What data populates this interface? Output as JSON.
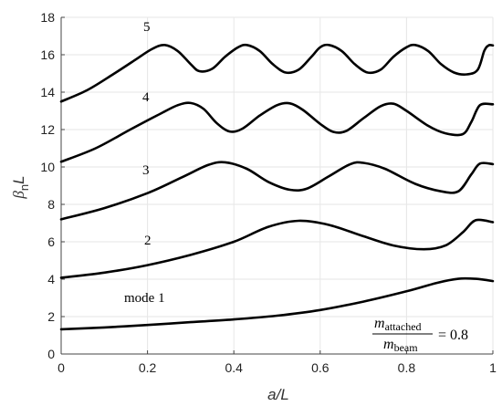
{
  "chart_data": {
    "type": "line",
    "xlabel": "a/L",
    "ylabel": {
      "base": "β",
      "sub": "n",
      "suffix": "L"
    },
    "xlim": [
      0,
      1
    ],
    "ylim": [
      0,
      18
    ],
    "x_ticks": [
      0,
      0.2,
      0.4,
      0.6,
      0.8,
      1
    ],
    "x_tick_labels": [
      "0",
      "0.2",
      "0.4",
      "0.6",
      "0.8",
      "1"
    ],
    "y_ticks": [
      0,
      2,
      4,
      6,
      8,
      10,
      12,
      14,
      16,
      18
    ],
    "y_tick_labels": [
      "0",
      "2",
      "4",
      "6",
      "8",
      "10",
      "12",
      "14",
      "16",
      "18"
    ],
    "grid": true,
    "annotation": {
      "numerator": "m",
      "numerator_sub": "attached",
      "denominator": "m",
      "denominator_sub": "beam",
      "value": "= 0.8"
    },
    "series": [
      {
        "label": "mode 1",
        "points": [
          [
            0,
            1.32
          ],
          [
            0.1,
            1.42
          ],
          [
            0.2,
            1.55
          ],
          [
            0.3,
            1.7
          ],
          [
            0.4,
            1.85
          ],
          [
            0.5,
            2.05
          ],
          [
            0.6,
            2.35
          ],
          [
            0.7,
            2.8
          ],
          [
            0.8,
            3.35
          ],
          [
            0.87,
            3.8
          ],
          [
            0.92,
            4.02
          ],
          [
            0.96,
            4.02
          ],
          [
            1.0,
            3.9
          ]
        ]
      },
      {
        "label": "2",
        "points": [
          [
            0,
            4.08
          ],
          [
            0.1,
            4.35
          ],
          [
            0.2,
            4.75
          ],
          [
            0.3,
            5.3
          ],
          [
            0.4,
            6.0
          ],
          [
            0.48,
            6.8
          ],
          [
            0.55,
            7.12
          ],
          [
            0.62,
            6.9
          ],
          [
            0.7,
            6.3
          ],
          [
            0.77,
            5.8
          ],
          [
            0.84,
            5.6
          ],
          [
            0.89,
            5.8
          ],
          [
            0.93,
            6.5
          ],
          [
            0.96,
            7.15
          ],
          [
            1.0,
            7.05
          ]
        ]
      },
      {
        "label": "3",
        "points": [
          [
            0,
            7.2
          ],
          [
            0.1,
            7.8
          ],
          [
            0.2,
            8.6
          ],
          [
            0.28,
            9.45
          ],
          [
            0.34,
            10.1
          ],
          [
            0.38,
            10.25
          ],
          [
            0.43,
            9.9
          ],
          [
            0.48,
            9.2
          ],
          [
            0.53,
            8.78
          ],
          [
            0.57,
            8.85
          ],
          [
            0.62,
            9.5
          ],
          [
            0.67,
            10.15
          ],
          [
            0.7,
            10.22
          ],
          [
            0.75,
            9.9
          ],
          [
            0.82,
            9.1
          ],
          [
            0.88,
            8.7
          ],
          [
            0.92,
            8.7
          ],
          [
            0.95,
            9.6
          ],
          [
            0.97,
            10.18
          ],
          [
            1.0,
            10.15
          ]
        ]
      },
      {
        "label": "4",
        "points": [
          [
            0,
            10.28
          ],
          [
            0.08,
            11.0
          ],
          [
            0.16,
            12.0
          ],
          [
            0.23,
            12.85
          ],
          [
            0.27,
            13.3
          ],
          [
            0.3,
            13.42
          ],
          [
            0.33,
            13.1
          ],
          [
            0.36,
            12.35
          ],
          [
            0.39,
            11.9
          ],
          [
            0.42,
            12.05
          ],
          [
            0.46,
            12.75
          ],
          [
            0.5,
            13.3
          ],
          [
            0.53,
            13.4
          ],
          [
            0.56,
            13.05
          ],
          [
            0.6,
            12.3
          ],
          [
            0.63,
            11.88
          ],
          [
            0.66,
            11.92
          ],
          [
            0.7,
            12.6
          ],
          [
            0.74,
            13.25
          ],
          [
            0.77,
            13.38
          ],
          [
            0.8,
            13.0
          ],
          [
            0.85,
            12.2
          ],
          [
            0.89,
            11.8
          ],
          [
            0.93,
            11.75
          ],
          [
            0.95,
            12.4
          ],
          [
            0.97,
            13.3
          ],
          [
            1.0,
            13.35
          ]
        ]
      },
      {
        "label": "5",
        "points": [
          [
            0,
            13.5
          ],
          [
            0.06,
            14.1
          ],
          [
            0.12,
            14.95
          ],
          [
            0.17,
            15.7
          ],
          [
            0.21,
            16.3
          ],
          [
            0.24,
            16.52
          ],
          [
            0.27,
            16.2
          ],
          [
            0.3,
            15.5
          ],
          [
            0.32,
            15.12
          ],
          [
            0.35,
            15.25
          ],
          [
            0.38,
            15.9
          ],
          [
            0.41,
            16.4
          ],
          [
            0.43,
            16.52
          ],
          [
            0.46,
            16.2
          ],
          [
            0.49,
            15.5
          ],
          [
            0.52,
            15.05
          ],
          [
            0.55,
            15.2
          ],
          [
            0.58,
            15.9
          ],
          [
            0.6,
            16.4
          ],
          [
            0.62,
            16.52
          ],
          [
            0.65,
            16.2
          ],
          [
            0.68,
            15.5
          ],
          [
            0.71,
            15.05
          ],
          [
            0.74,
            15.2
          ],
          [
            0.77,
            15.9
          ],
          [
            0.8,
            16.4
          ],
          [
            0.82,
            16.52
          ],
          [
            0.85,
            16.2
          ],
          [
            0.88,
            15.5
          ],
          [
            0.91,
            15.05
          ],
          [
            0.94,
            14.95
          ],
          [
            0.965,
            15.2
          ],
          [
            0.98,
            16.2
          ],
          [
            0.99,
            16.5
          ],
          [
            1.0,
            16.5
          ]
        ]
      }
    ]
  }
}
